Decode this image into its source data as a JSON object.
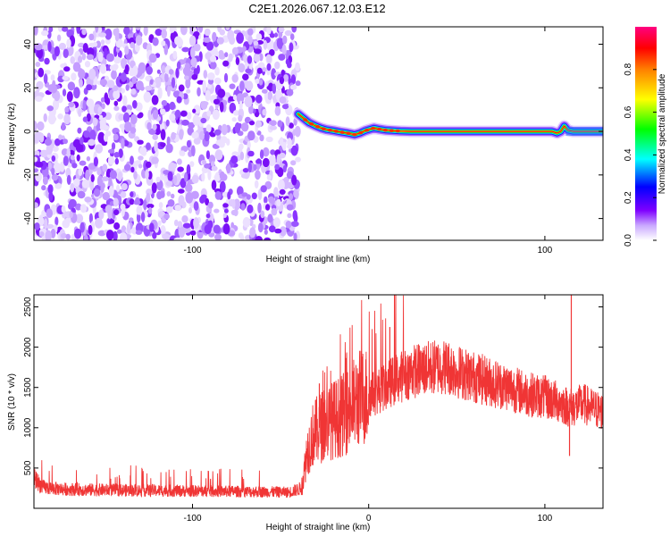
{
  "title": "C2E1.2026.067.12.03.E12",
  "chart_data": [
    {
      "type": "heatmap",
      "name": "spectrogram",
      "xlabel": "Height of straight line (km)",
      "ylabel": "Frequency (Hz)",
      "xlim": [
        -190,
        133
      ],
      "ylim": [
        -50,
        48
      ],
      "x_ticks": [
        -100,
        0,
        100
      ],
      "x_tick_labels": [
        "-100",
        "",
        "100"
      ],
      "y_ticks": [
        -40,
        -20,
        0,
        20,
        40
      ],
      "y_tick_labels": [
        "-40",
        "-20",
        "0",
        "20",
        "40"
      ],
      "noise_region_x": [
        -190,
        -40
      ],
      "signal_region_x": [
        -40,
        133
      ],
      "signal_track": {
        "x": [
          -40,
          -37,
          -34,
          -30,
          -27,
          -24,
          -20,
          -16,
          -12,
          -8,
          -5,
          -2,
          0,
          3,
          6,
          10,
          14,
          18,
          24,
          30,
          40,
          60,
          80,
          100,
          104,
          107,
          109,
          111,
          113,
          116,
          120,
          125,
          133
        ],
        "y": [
          8,
          6,
          4,
          2.5,
          1.5,
          0.8,
          0.3,
          -0.3,
          -0.8,
          -1.5,
          -0.8,
          0.3,
          0.8,
          1.5,
          1,
          0.5,
          0.3,
          0.1,
          0,
          0,
          0,
          0,
          0,
          0,
          0,
          -0.8,
          0,
          2.5,
          0.5,
          0,
          0,
          0,
          0
        ]
      },
      "colorbar": {
        "label": "Normalized spectral amplitude",
        "range": [
          0,
          1
        ],
        "ticks": [
          0.0,
          0.2,
          0.4,
          0.6,
          0.8
        ],
        "tick_labels": [
          "0.0",
          "0.2",
          "0.4",
          "0.6",
          "0.8"
        ],
        "colors": [
          "#ffffff",
          "#7f00ff",
          "#0000ff",
          "#00ffff",
          "#00ff00",
          "#ffff00",
          "#ff8000",
          "#ff0000",
          "#ff0080"
        ]
      }
    },
    {
      "type": "line",
      "name": "snr",
      "xlabel": "Height of straight line (km)",
      "ylabel": "SNR (10 * v/v)",
      "xlim": [
        -190,
        133
      ],
      "ylim": [
        0,
        2650
      ],
      "x_ticks": [
        -100,
        0,
        100
      ],
      "x_tick_labels": [
        "-100",
        "0",
        "100"
      ],
      "y_ticks": [
        500,
        1000,
        1500,
        2000,
        2500
      ],
      "y_tick_labels": [
        "500",
        "1000",
        "1500",
        "2000",
        "2500"
      ],
      "line_color": "#f03535",
      "series": [
        {
          "x": [
            -190,
            -185,
            -175,
            -160,
            -140,
            -120,
            -100,
            -80,
            -60,
            -45,
            -38,
            -35,
            -32,
            -28,
            -24,
            -20,
            -15,
            -10,
            -5,
            0,
            5,
            10,
            15,
            20,
            25,
            30,
            35,
            40,
            45,
            50,
            60,
            70,
            80,
            90,
            100,
            110,
            114,
            118,
            122,
            126,
            130,
            133
          ],
          "y": [
            380,
            260,
            240,
            230,
            225,
            220,
            215,
            210,
            205,
            200,
            250,
            700,
            900,
            1000,
            1050,
            1100,
            1150,
            1250,
            1380,
            1400,
            1450,
            1520,
            1600,
            1650,
            1700,
            1720,
            1740,
            1760,
            1750,
            1700,
            1630,
            1560,
            1500,
            1420,
            1380,
            1300,
            1250,
            1270,
            1300,
            1250,
            1220,
            1200
          ]
        }
      ],
      "spikes": [
        {
          "x": -28,
          "y": 1550
        },
        {
          "x": 12,
          "y": 2250
        },
        {
          "x": 115,
          "y": 2650
        },
        {
          "x": 114,
          "y": 650
        }
      ]
    }
  ]
}
